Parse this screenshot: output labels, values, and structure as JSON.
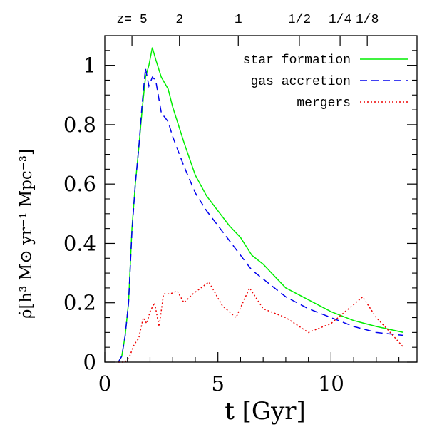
{
  "chart_data": {
    "type": "line",
    "xlabel": "t [Gyr]",
    "ylabel": "ρ̇[h³ M⊙ yr⁻¹ Mpc⁻³]",
    "xlim": [
      0,
      13.8
    ],
    "ylim": [
      0,
      1.1
    ],
    "x_ticks": [
      {
        "value": 0,
        "label": "0"
      },
      {
        "value": 5,
        "label": "5"
      },
      {
        "value": 10,
        "label": "10"
      }
    ],
    "y_ticks": [
      {
        "value": 0,
        "label": "0"
      },
      {
        "value": 0.2,
        "label": "0.2"
      },
      {
        "value": 0.4,
        "label": "0.4"
      },
      {
        "value": 0.6,
        "label": "0.6"
      },
      {
        "value": 0.8,
        "label": "0.8"
      },
      {
        "value": 1,
        "label": "1"
      }
    ],
    "top_axis_ticks": [
      {
        "t": 1.2,
        "label": "z= 5"
      },
      {
        "t": 3.3,
        "label": "2"
      },
      {
        "t": 5.9,
        "label": "1"
      },
      {
        "t": 8.6,
        "label": "1/2"
      },
      {
        "t": 10.4,
        "label": "1/4"
      },
      {
        "t": 11.6,
        "label": "1/8"
      }
    ],
    "legend_position": "top-right",
    "grid": false,
    "series": [
      {
        "name": "star formation",
        "color": "#00ee00",
        "style": "solid",
        "x": [
          0.6,
          0.75,
          0.9,
          1.05,
          1.2,
          1.35,
          1.5,
          1.65,
          1.8,
          1.95,
          2.1,
          2.25,
          2.5,
          2.8,
          3.0,
          3.5,
          4.0,
          4.5,
          5.0,
          5.5,
          6.0,
          6.5,
          7.0,
          7.5,
          8.0,
          9.0,
          10.0,
          11.0,
          12.0,
          13.2
        ],
        "y": [
          0.0,
          0.02,
          0.09,
          0.2,
          0.45,
          0.6,
          0.72,
          0.85,
          0.96,
          1.0,
          1.06,
          1.02,
          0.96,
          0.92,
          0.86,
          0.74,
          0.63,
          0.56,
          0.51,
          0.46,
          0.42,
          0.36,
          0.33,
          0.29,
          0.25,
          0.21,
          0.17,
          0.14,
          0.12,
          0.1
        ]
      },
      {
        "name": "gas accretion",
        "color": "#0000ee",
        "style": "dashed",
        "x": [
          0.6,
          0.75,
          0.9,
          1.05,
          1.2,
          1.35,
          1.5,
          1.65,
          1.8,
          1.95,
          2.1,
          2.25,
          2.5,
          2.8,
          3.0,
          3.5,
          4.0,
          4.5,
          5.0,
          5.5,
          6.0,
          6.5,
          7.0,
          7.5,
          8.0,
          9.0,
          10.0,
          11.0,
          12.0,
          13.2
        ],
        "y": [
          0.0,
          0.02,
          0.09,
          0.2,
          0.44,
          0.6,
          0.72,
          0.87,
          0.99,
          0.93,
          0.96,
          0.95,
          0.84,
          0.81,
          0.76,
          0.66,
          0.57,
          0.51,
          0.46,
          0.41,
          0.36,
          0.31,
          0.28,
          0.25,
          0.22,
          0.18,
          0.15,
          0.12,
          0.1,
          0.09
        ]
      },
      {
        "name": "mergers",
        "color": "#ee0000",
        "style": "dotted",
        "x": [
          0.6,
          0.9,
          1.1,
          1.3,
          1.5,
          1.7,
          1.85,
          2.0,
          2.2,
          2.4,
          2.6,
          2.9,
          3.2,
          3.5,
          3.9,
          4.6,
          5.2,
          5.8,
          6.4,
          7.0,
          8.0,
          9.0,
          10.0,
          11.4,
          12.0,
          12.5,
          13.2
        ],
        "y": [
          0.0,
          0.0,
          0.02,
          0.06,
          0.08,
          0.15,
          0.13,
          0.17,
          0.2,
          0.12,
          0.23,
          0.23,
          0.24,
          0.2,
          0.23,
          0.27,
          0.19,
          0.15,
          0.25,
          0.18,
          0.15,
          0.1,
          0.13,
          0.22,
          0.15,
          0.11,
          0.05
        ]
      }
    ]
  }
}
